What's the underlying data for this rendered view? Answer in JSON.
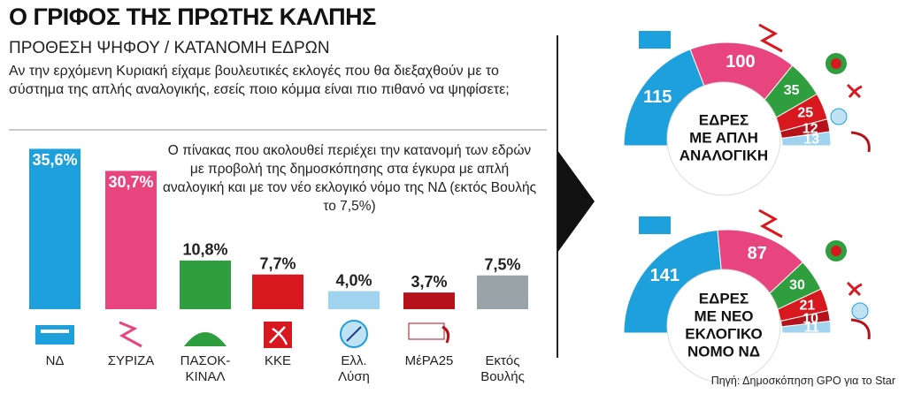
{
  "header": {
    "title": "Ο ΓΡΙΦΟΣ ΤΗΣ ΠΡΩΤΗΣ ΚΑΛΠΗΣ",
    "subtitle": "ΠΡΟΘΕΣΗ ΨΗΦΟΥ / ΚΑΤΑΝΟΜΗ ΕΔΡΩΝ",
    "question": "Αν την ερχόμενη Κυριακή είχαμε βουλευτικές εκλογές που θα διεξαχθούν με το σύστημα της απλής αναλογικής, εσείς ποιο κόμμα είναι πιο πιθανό να ψηφίσετε;"
  },
  "note": "Ο πίνακας που ακολουθεί περιέχει την κατανομή των εδρών με προβολή της δημοσκόπησης στα έγκυρα με απλή αναλογική και με τον νέο εκλογικό νόμο της ΝΔ (εκτός Βουλής το 7,5%)",
  "source": "Πηγή: Δημοσκόπηση GPO για το Star",
  "chart_data": [
    {
      "type": "bar",
      "categories": [
        "ΝΔ",
        "ΣΥΡΙΖΑ",
        "ΠΑΣΟΚ-ΚΙΝΑΛ",
        "ΚΚΕ",
        "Ελλ. Λύση",
        "ΜέΡΑ25",
        "Εκτός Βουλής"
      ],
      "values": [
        35.6,
        30.7,
        10.8,
        7.7,
        4.0,
        3.7,
        7.5
      ],
      "value_labels": [
        "35,6%",
        "30,7%",
        "10,8%",
        "7,7%",
        "4,0%",
        "3,7%",
        "7,5%"
      ],
      "colors": [
        "#1ea0dc",
        "#e8457f",
        "#2e9e3e",
        "#d7191f",
        "#9fd3ee",
        "#b5121b",
        "#9aa3a8"
      ]
    },
    {
      "type": "semicircle",
      "title": [
        "ΕΔΡΕΣ",
        "ΜΕ ΑΠΛΗ",
        "ΑΝΑΛΟΓΙΚΗ"
      ],
      "values": [
        115,
        100,
        35,
        25,
        12,
        13
      ],
      "colors": [
        "#1ea0dc",
        "#e8457f",
        "#2e9e3e",
        "#d7191f",
        "#b5121b",
        "#9fd3ee"
      ]
    },
    {
      "type": "semicircle",
      "title": [
        "ΕΔΡΕΣ",
        "ΜΕ ΝΕΟ",
        "ΕΚΛΟΓΙΚΟ",
        "ΝΟΜΟ ΝΔ"
      ],
      "values": [
        141,
        87,
        30,
        21,
        10,
        11
      ],
      "colors": [
        "#1ea0dc",
        "#e8457f",
        "#2e9e3e",
        "#d7191f",
        "#b5121b",
        "#9fd3ee"
      ]
    }
  ]
}
